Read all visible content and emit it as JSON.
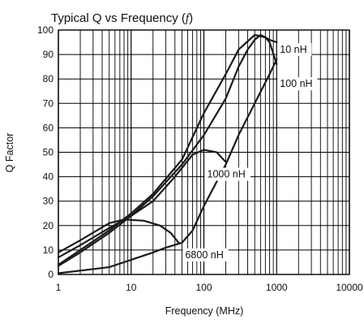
{
  "chart_data": {
    "type": "line",
    "title": "Typical Q vs Frequency (f)",
    "title_text": "Typical Q vs Frequency (",
    "title_symbol": "f",
    "title_close": ")",
    "xlabel": "Frequency (MHz)",
    "ylabel": "Q Factor",
    "x_scale": "log",
    "xlim": [
      1,
      10000
    ],
    "ylim": [
      0,
      100
    ],
    "x_ticks": [
      "1",
      "10",
      "100",
      "1000",
      "10000"
    ],
    "y_ticks": [
      "0",
      "10",
      "20",
      "30",
      "40",
      "50",
      "60",
      "70",
      "80",
      "90",
      "100"
    ],
    "grid": true,
    "series": [
      {
        "name": "10 nH",
        "points": [
          [
            1,
            4
          ],
          [
            2,
            10
          ],
          [
            5,
            18
          ],
          [
            10,
            25
          ],
          [
            20,
            33
          ],
          [
            50,
            47
          ],
          [
            100,
            66
          ],
          [
            200,
            82
          ],
          [
            300,
            92
          ],
          [
            500,
            98
          ],
          [
            700,
            97
          ],
          [
            800,
            95
          ],
          [
            1000,
            86
          ]
        ]
      },
      {
        "name": "100 nH",
        "points": [
          [
            1,
            3.5
          ],
          [
            2,
            9
          ],
          [
            5,
            17
          ],
          [
            10,
            24
          ],
          [
            20,
            32
          ],
          [
            50,
            45
          ],
          [
            100,
            57
          ],
          [
            200,
            72
          ],
          [
            300,
            85
          ],
          [
            400,
            92
          ],
          [
            500,
            96
          ],
          [
            600,
            98
          ],
          [
            700,
            97
          ],
          [
            800,
            96
          ],
          [
            1000,
            95
          ]
        ]
      },
      {
        "name": "1000 nH",
        "points": [
          [
            1,
            7
          ],
          [
            2,
            12
          ],
          [
            5,
            19
          ],
          [
            10,
            24
          ],
          [
            20,
            30
          ],
          [
            40,
            40
          ],
          [
            70,
            49
          ],
          [
            100,
            51
          ],
          [
            150,
            50
          ],
          [
            200,
            46
          ]
        ]
      },
      {
        "name": "6800 nH",
        "points": [
          [
            1,
            9
          ],
          [
            2,
            14
          ],
          [
            5,
            21
          ],
          [
            8,
            22.5
          ],
          [
            15,
            22
          ],
          [
            25,
            20
          ],
          [
            35,
            17
          ],
          [
            45,
            13
          ]
        ]
      },
      {
        "name": "",
        "points": [
          [
            1,
            0.5
          ],
          [
            5,
            3
          ],
          [
            10,
            6
          ],
          [
            20,
            9
          ],
          [
            30,
            11
          ],
          [
            50,
            13
          ],
          [
            70,
            18
          ],
          [
            100,
            28
          ],
          [
            200,
            45
          ],
          [
            300,
            57
          ],
          [
            500,
            70
          ],
          [
            800,
            82
          ],
          [
            1000,
            88
          ]
        ]
      }
    ],
    "labels": [
      {
        "text": "10 nH",
        "at": [
          1000,
          92
        ]
      },
      {
        "text": "100 nH",
        "at": [
          1000,
          78
        ]
      },
      {
        "text": "1000 nH",
        "at": [
          100,
          41
        ]
      },
      {
        "text": "6800 nH",
        "at": [
          50,
          8
        ]
      }
    ]
  }
}
